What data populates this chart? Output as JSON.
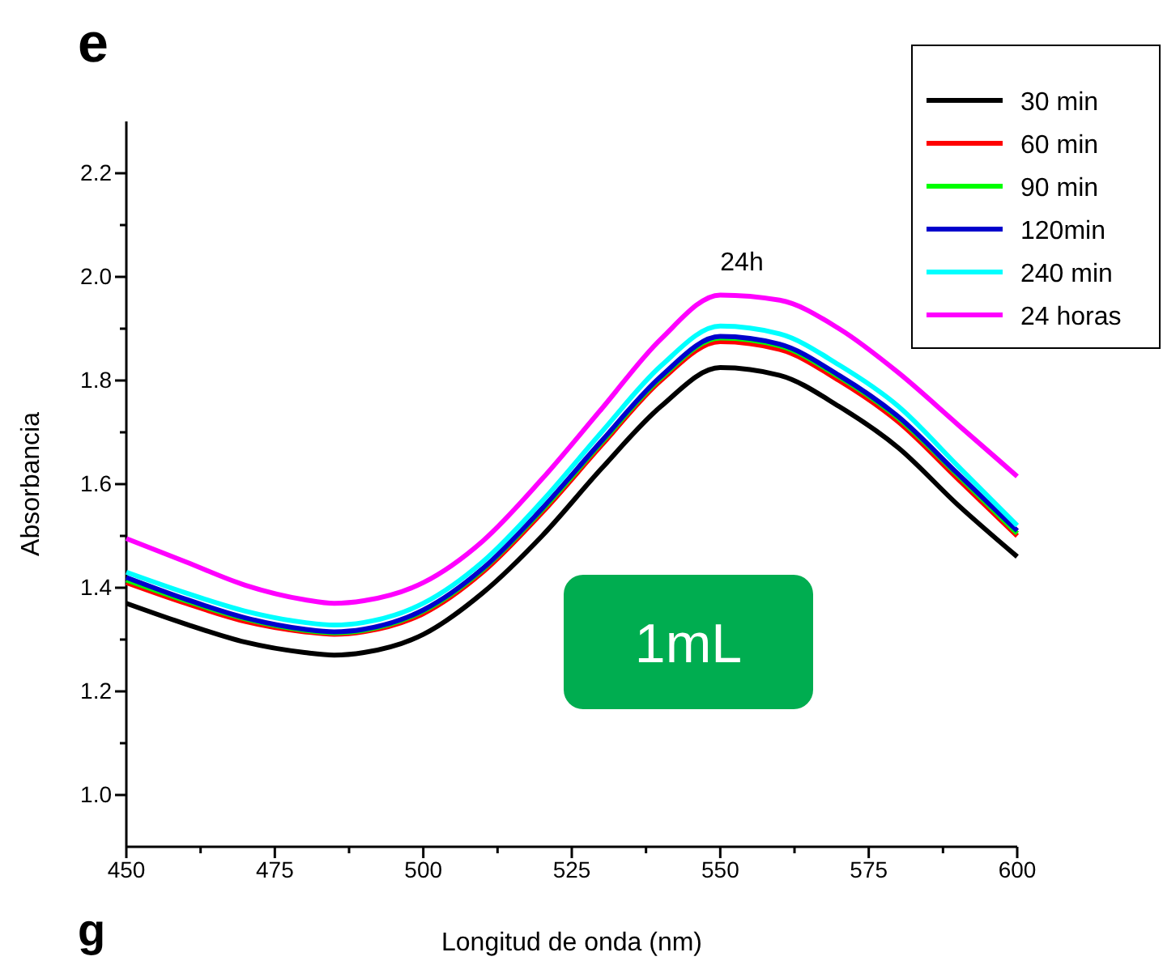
{
  "chart_data": {
    "type": "line",
    "xlabel": "Longitud de onda (nm)",
    "ylabel": "Absorbancia",
    "x": [
      450,
      460,
      470,
      480,
      485,
      490,
      500,
      510,
      520,
      530,
      540,
      550,
      560,
      570,
      580,
      590,
      600
    ],
    "series": [
      {
        "name": "30 min",
        "color": "#000000",
        "values": [
          1.37,
          1.33,
          1.295,
          1.275,
          1.27,
          1.275,
          1.31,
          1.39,
          1.5,
          1.63,
          1.75,
          1.825,
          1.81,
          1.75,
          1.67,
          1.56,
          1.46
        ]
      },
      {
        "name": "60 min",
        "color": "#ff0000",
        "values": [
          1.41,
          1.37,
          1.335,
          1.315,
          1.31,
          1.315,
          1.35,
          1.43,
          1.545,
          1.675,
          1.8,
          1.875,
          1.86,
          1.8,
          1.72,
          1.61,
          1.5
        ]
      },
      {
        "name": "90 min",
        "color": "#00ff00",
        "values": [
          1.415,
          1.375,
          1.34,
          1.318,
          1.313,
          1.318,
          1.355,
          1.435,
          1.55,
          1.68,
          1.805,
          1.882,
          1.867,
          1.807,
          1.727,
          1.617,
          1.505
        ]
      },
      {
        "name": "120min",
        "color": "#0000cc",
        "values": [
          1.42,
          1.378,
          1.342,
          1.32,
          1.315,
          1.32,
          1.357,
          1.437,
          1.553,
          1.683,
          1.808,
          1.885,
          1.87,
          1.81,
          1.73,
          1.62,
          1.51
        ]
      },
      {
        "name": "240 min",
        "color": "#00ffff",
        "values": [
          1.43,
          1.39,
          1.355,
          1.333,
          1.328,
          1.333,
          1.37,
          1.45,
          1.567,
          1.7,
          1.828,
          1.905,
          1.89,
          1.83,
          1.75,
          1.635,
          1.52
        ]
      },
      {
        "name": "24 horas",
        "color": "#ff00ff",
        "values": [
          1.495,
          1.45,
          1.405,
          1.377,
          1.37,
          1.375,
          1.41,
          1.49,
          1.61,
          1.745,
          1.88,
          1.965,
          1.955,
          1.9,
          1.815,
          1.715,
          1.615
        ]
      }
    ],
    "xlim": [
      450,
      600
    ],
    "xticks": [
      450,
      {
        "value": 462.5,
        "label": null
      },
      475,
      {
        "value": 487.5,
        "label": null
      },
      500,
      {
        "value": 512.5,
        "label": null
      },
      525,
      {
        "value": 537.5,
        "label": null
      },
      550,
      {
        "value": 562.5,
        "label": null
      },
      575,
      {
        "value": 587.5,
        "label": null
      },
      600
    ],
    "ylim": [
      0.9,
      2.3
    ],
    "yticks": [
      {
        "value": 1.0,
        "label": "1.0"
      },
      {
        "value": 1.1,
        "label": null
      },
      {
        "value": 1.2,
        "label": "1.2"
      },
      {
        "value": 1.3,
        "label": null
      },
      {
        "value": 1.4,
        "label": "1.4"
      },
      {
        "value": 1.5,
        "label": null
      },
      {
        "value": 1.6,
        "label": "1.6"
      },
      {
        "value": 1.7,
        "label": null
      },
      {
        "value": 1.8,
        "label": "1.8"
      },
      {
        "value": 1.9,
        "label": null
      },
      {
        "value": 2.0,
        "label": "2.0"
      },
      {
        "value": 2.1,
        "label": null
      },
      {
        "value": 2.2,
        "label": "2.2"
      }
    ],
    "grid": false,
    "legend": "top right",
    "marker": "none",
    "line_style": "solid",
    "annotations": [
      "24h",
      "1mL",
      "e",
      "g"
    ]
  }
}
